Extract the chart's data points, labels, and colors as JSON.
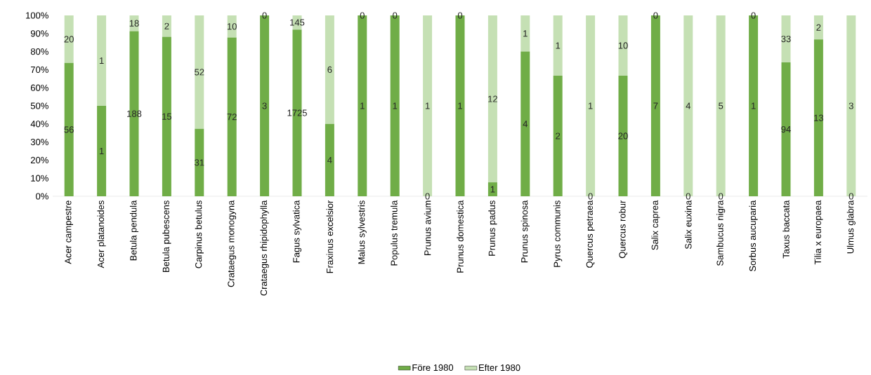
{
  "chart_data": {
    "type": "bar",
    "stacked": true,
    "legend": "bottom",
    "categories": [
      "Acer campestre",
      "Acer platanoides",
      "Betula pendula",
      "Betula pubescens",
      "Carpinus betulus",
      "Crataegus monogyna",
      "Crataegus rhipidophylla",
      "Fagus sylvatica",
      "Fraxinus excelsior",
      "Malus sylvestris",
      "Populus tremula",
      "Prunus avium",
      "Prunus domestica",
      "Prunus padus",
      "Prunus spinosa",
      "Pyrus communis",
      "Quercus petraea",
      "Quercus robur",
      "Salix caprea",
      "Salix euxina",
      "Sambucus nigra",
      "Sorbus aucuparia",
      "Taxus baccata",
      "Tilia x europaea",
      "Ulmus glabra"
    ],
    "ylim": [
      0,
      100
    ],
    "yticks": [
      {
        "value": 0,
        "label": "0%"
      },
      {
        "value": 10,
        "label": "10%"
      },
      {
        "value": 20,
        "label": "20%"
      },
      {
        "value": 30,
        "label": "30%"
      },
      {
        "value": 40,
        "label": "40%"
      },
      {
        "value": 50,
        "label": "50%"
      },
      {
        "value": 60,
        "label": "60%"
      },
      {
        "value": 70,
        "label": "70%"
      },
      {
        "value": 80,
        "label": "80%"
      },
      {
        "value": 90,
        "label": "90%"
      },
      {
        "value": 100,
        "label": "100%"
      }
    ],
    "series": [
      {
        "name": "Före 1980",
        "color": "#70ad47",
        "values": [
          73.7,
          50,
          91.3,
          88.2,
          37.3,
          87.8,
          100,
          92.2,
          40,
          100,
          100,
          0,
          100,
          7.7,
          80,
          66.7,
          0,
          66.7,
          100,
          0,
          0,
          100,
          74,
          86.7,
          0
        ]
      },
      {
        "name": "Efter 1980",
        "color": "#c5e0b4",
        "values": [
          26.3,
          50,
          8.7,
          11.8,
          62.7,
          12.2,
          0,
          7.8,
          60,
          0,
          0,
          100,
          0,
          92.3,
          20,
          33.3,
          100,
          33.3,
          0,
          100,
          100,
          0,
          26,
          13.3,
          100
        ]
      }
    ],
    "annotations": [
      "56",
      "20",
      "1",
      "1",
      "188",
      "18",
      "15",
      "2",
      "31",
      "52",
      "72",
      "10",
      "3",
      "0",
      "1725",
      "145",
      "4",
      "6",
      "1",
      "0",
      "1",
      "0",
      "0",
      "1",
      "1",
      "0",
      "1",
      "12",
      "4",
      "1",
      "2",
      "1",
      "0",
      "1",
      "20",
      "10",
      "7",
      "0",
      "0",
      "4",
      "0",
      "5",
      "1",
      "0",
      "94",
      "33",
      "13",
      "2",
      "0",
      "3"
    ]
  }
}
